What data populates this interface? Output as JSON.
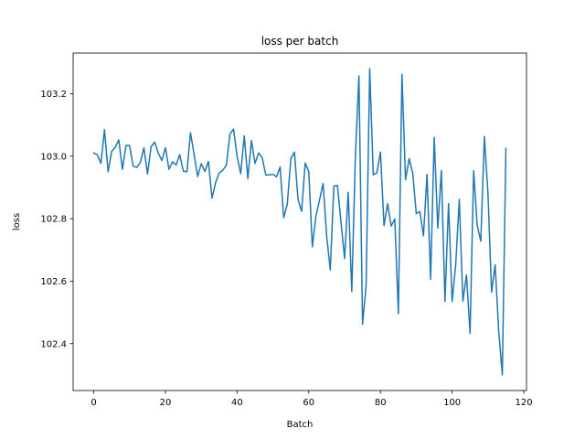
{
  "chart_data": {
    "type": "line",
    "title": "loss per batch",
    "xlabel": "Batch",
    "ylabel": "loss",
    "xlim": [
      -5.75,
      120.75
    ],
    "ylim": [
      102.25,
      103.33
    ],
    "xticks": [
      0,
      20,
      40,
      60,
      80,
      100,
      120
    ],
    "yticks": [
      102.4,
      102.6,
      102.8,
      103.0,
      103.2
    ],
    "ytick_labels": [
      "102.4",
      "102.6",
      "102.8",
      "103.0",
      "103.2"
    ],
    "grid": false,
    "legend": "none",
    "series": [
      {
        "color": "#1f77b4",
        "x": [
          0,
          1,
          2,
          3,
          4,
          5,
          6,
          7,
          8,
          9,
          10,
          11,
          12,
          13,
          14,
          15,
          16,
          17,
          18,
          19,
          20,
          21,
          22,
          23,
          24,
          25,
          26,
          27,
          28,
          29,
          30,
          31,
          32,
          33,
          34,
          35,
          36,
          37,
          38,
          39,
          40,
          41,
          42,
          43,
          44,
          45,
          46,
          47,
          48,
          49,
          50,
          51,
          52,
          53,
          54,
          55,
          56,
          57,
          58,
          59,
          60,
          61,
          62,
          63,
          64,
          65,
          66,
          67,
          68,
          69,
          70,
          71,
          72,
          73,
          74,
          75,
          76,
          77,
          78,
          79,
          80,
          81,
          82,
          83,
          84,
          85,
          86,
          87,
          88,
          89,
          90,
          91,
          92,
          93,
          94,
          95,
          96,
          97,
          98,
          99,
          100,
          101,
          102,
          103,
          104,
          105,
          106,
          107,
          108,
          109,
          110,
          111,
          112,
          113,
          114,
          115
        ],
        "y": [
          103.01,
          103.005,
          102.977,
          103.085,
          102.95,
          103.015,
          103.028,
          103.052,
          102.958,
          103.034,
          103.034,
          102.968,
          102.964,
          102.98,
          103.027,
          102.943,
          103.03,
          103.045,
          103.01,
          102.986,
          103.027,
          102.958,
          102.982,
          102.972,
          103.005,
          102.952,
          102.95,
          103.075,
          103.006,
          102.935,
          102.976,
          102.951,
          102.983,
          102.866,
          102.915,
          102.946,
          102.955,
          102.971,
          103.07,
          103.087,
          103.0,
          102.944,
          103.065,
          102.928,
          103.05,
          102.977,
          103.01,
          102.995,
          102.94,
          102.94,
          102.942,
          102.934,
          102.965,
          102.803,
          102.846,
          102.992,
          103.013,
          102.862,
          102.823,
          102.978,
          102.95,
          102.71,
          102.808,
          102.86,
          102.913,
          102.743,
          102.636,
          102.904,
          102.906,
          102.788,
          102.672,
          102.884,
          102.566,
          103.0,
          103.257,
          102.462,
          102.586,
          103.28,
          102.94,
          102.947,
          103.013,
          102.778,
          102.848,
          102.776,
          102.799,
          102.496,
          103.262,
          102.925,
          102.992,
          102.946,
          102.816,
          102.823,
          102.745,
          102.942,
          102.606,
          103.06,
          102.77,
          102.954,
          102.535,
          102.848,
          102.535,
          102.653,
          102.862,
          102.536,
          102.62,
          102.433,
          102.953,
          102.778,
          102.728,
          103.063,
          102.88,
          102.565,
          102.652,
          102.44,
          102.3,
          103.025
        ]
      }
    ]
  }
}
